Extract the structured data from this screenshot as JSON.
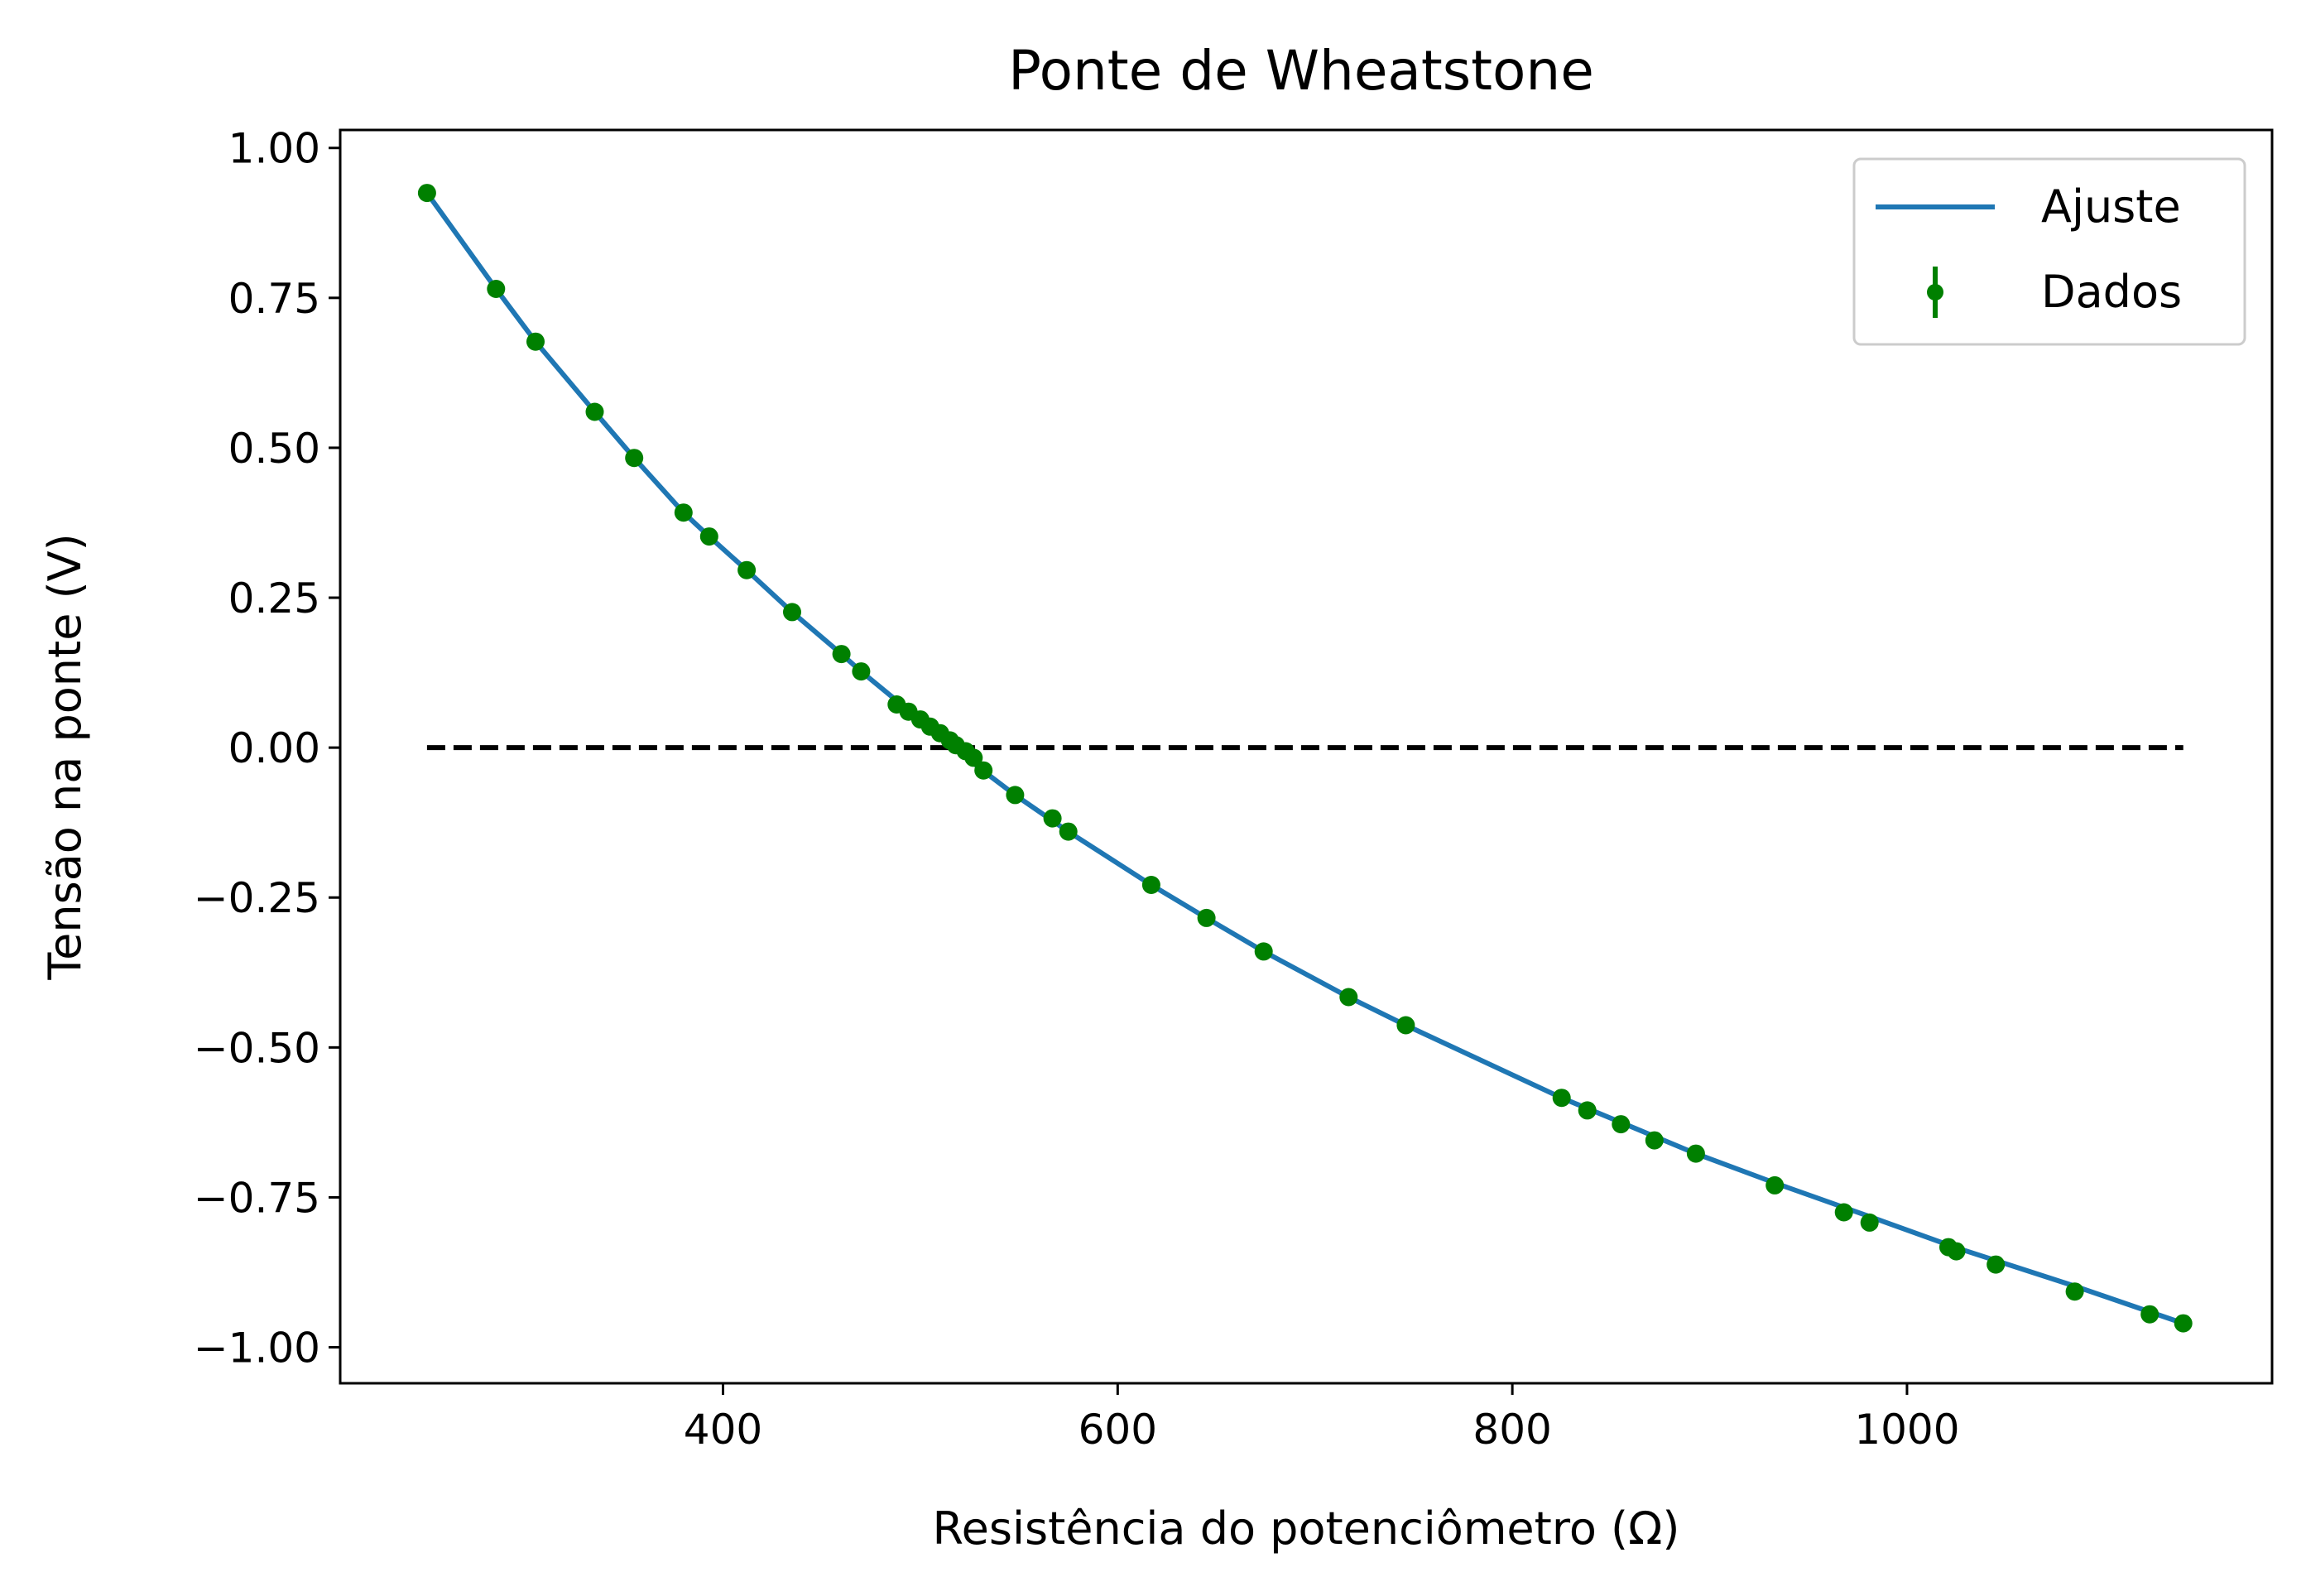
{
  "chart_data": {
    "type": "scatter",
    "title": "Ponte de Wheatstone",
    "xlabel": "Resistência do potenciômetro (Ω)",
    "ylabel": "Tensão na ponte (V)",
    "xlim": [
      206,
      1185
    ],
    "ylim": [
      -1.06,
      1.03
    ],
    "x_ticks": [
      400,
      600,
      800,
      1000
    ],
    "x_tick_labels": [
      "400",
      "600",
      "800",
      "1000"
    ],
    "y_ticks": [
      1.0,
      0.75,
      0.5,
      0.25,
      0.0,
      -0.25,
      -0.5,
      -0.75,
      -1.0
    ],
    "y_tick_labels": [
      "1.00",
      "0.75",
      "0.50",
      "0.25",
      "0.00",
      "−0.25",
      "−0.50",
      "−0.75",
      "−1.00"
    ],
    "grid": false,
    "legend_position": "top-right",
    "colors": {
      "fit": "#1f77b4",
      "data": "#008000",
      "reference": "#000000"
    },
    "reference_line": {
      "y": 0,
      "x_range": [
        250,
        1140
      ],
      "style": "dashed"
    },
    "series": [
      {
        "name": "Ajuste",
        "kind": "line",
        "x": [
          250,
          285,
          305,
          335,
          355,
          380,
          393,
          412,
          435,
          460,
          470,
          490,
          498,
          505,
          512,
          520,
          530,
          548,
          575,
          617,
          645,
          674,
          717,
          746,
          825,
          855,
          893,
          933,
          981,
          1025,
          1085,
          1140
        ],
        "y": [
          0.925,
          0.765,
          0.677,
          0.56,
          0.483,
          0.392,
          0.352,
          0.296,
          0.226,
          0.156,
          0.127,
          0.073,
          0.053,
          0.035,
          0.016,
          -0.006,
          -0.034,
          -0.079,
          -0.14,
          -0.229,
          -0.284,
          -0.34,
          -0.416,
          -0.463,
          -0.584,
          -0.625,
          -0.677,
          -0.726,
          -0.782,
          -0.834,
          -0.898,
          -0.96
        ]
      },
      {
        "name": "Dados",
        "kind": "errorbar",
        "x": [
          250,
          285,
          305,
          335,
          355,
          380,
          393,
          412,
          435,
          460,
          470,
          488,
          494,
          500,
          505,
          510,
          515,
          518,
          523,
          527,
          532,
          548,
          567,
          575,
          617,
          645,
          674,
          717,
          746,
          825,
          838,
          855,
          872,
          893,
          933,
          968,
          981,
          1021,
          1025,
          1045,
          1085,
          1123,
          1140
        ],
        "y": [
          0.925,
          0.765,
          0.677,
          0.56,
          0.483,
          0.392,
          0.352,
          0.296,
          0.226,
          0.156,
          0.127,
          0.072,
          0.06,
          0.047,
          0.035,
          0.024,
          0.012,
          0.004,
          -0.006,
          -0.017,
          -0.038,
          -0.079,
          -0.118,
          -0.14,
          -0.229,
          -0.284,
          -0.34,
          -0.416,
          -0.463,
          -0.584,
          -0.605,
          -0.628,
          -0.655,
          -0.677,
          -0.73,
          -0.775,
          -0.792,
          -0.833,
          -0.84,
          -0.862,
          -0.907,
          -0.945,
          -0.96
        ]
      }
    ]
  }
}
